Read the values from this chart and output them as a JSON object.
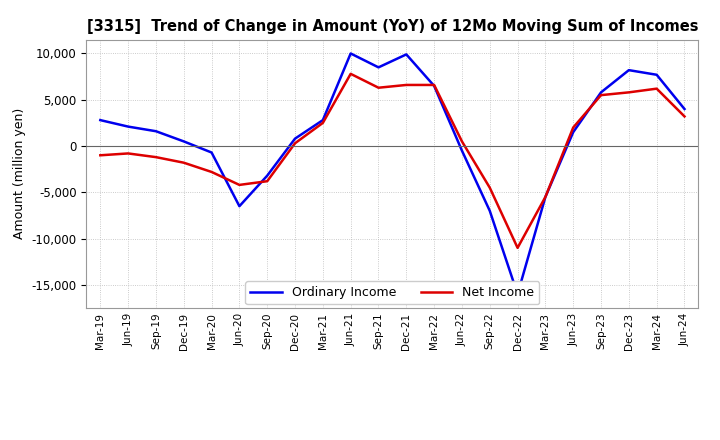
{
  "title": "[3315]  Trend of Change in Amount (YoY) of 12Mo Moving Sum of Incomes",
  "ylabel": "Amount (million yen)",
  "x_labels": [
    "Mar-19",
    "Jun-19",
    "Sep-19",
    "Dec-19",
    "Mar-20",
    "Jun-20",
    "Sep-20",
    "Dec-20",
    "Mar-21",
    "Jun-21",
    "Sep-21",
    "Dec-21",
    "Mar-22",
    "Jun-22",
    "Sep-22",
    "Dec-22",
    "Mar-23",
    "Jun-23",
    "Sep-23",
    "Dec-23",
    "Mar-24",
    "Jun-24"
  ],
  "ordinary_income": [
    2800,
    2100,
    1600,
    500,
    -700,
    -6500,
    -3200,
    800,
    2800,
    10000,
    8500,
    9900,
    6500,
    -500,
    -7000,
    -16000,
    -5500,
    1500,
    5800,
    8200,
    7700,
    4000
  ],
  "net_income": [
    -1000,
    -800,
    -1200,
    -1800,
    -2800,
    -4200,
    -3800,
    300,
    2500,
    7800,
    6300,
    6600,
    6600,
    500,
    -4500,
    -11000,
    -5500,
    2000,
    5500,
    5800,
    6200,
    3200
  ],
  "ordinary_income_color": "#0000EE",
  "net_income_color": "#DD0000",
  "ylim": [
    -17500,
    11500
  ],
  "yticks": [
    -15000,
    -10000,
    -5000,
    0,
    5000,
    10000
  ],
  "background_color": "#FFFFFF",
  "grid_color": "#BBBBBB",
  "legend_labels": [
    "Ordinary Income",
    "Net Income"
  ]
}
